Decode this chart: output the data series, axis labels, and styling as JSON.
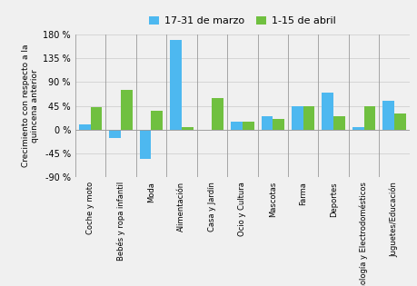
{
  "categories": [
    "Coche y moto",
    "Bebés y ropa infantil",
    "Moda",
    "Alimentación",
    "Casa y Jardín",
    "Ocio y Cultura",
    "Mascotas",
    "Farma",
    "Deportes",
    "Tecnología y Electrodomésticos",
    "Juguetes/Educación"
  ],
  "series": [
    {
      "label": "17-31 de marzo",
      "color": "#4db8f0",
      "values": [
        10,
        -15,
        -55,
        170,
        0,
        15,
        25,
        45,
        70,
        5,
        55
      ]
    },
    {
      "label": "1-15 de abril",
      "color": "#70c040",
      "values": [
        42,
        75,
        35,
        5,
        60,
        15,
        20,
        45,
        25,
        45,
        30
      ]
    }
  ],
  "ylabel": "Crecimiento con respecto a la\nquincena anterior",
  "ylim": [
    -90,
    180
  ],
  "yticks": [
    -90,
    -45,
    0,
    45,
    90,
    135,
    180
  ],
  "bar_width": 0.38,
  "background_color": "#f0f0f0",
  "plot_bg_color": "#f0f0f0",
  "grid_color": "#d0d0d0",
  "vline_color": "#999999",
  "legend_fontsize": 8,
  "ylabel_fontsize": 6.5,
  "xtick_fontsize": 6,
  "ytick_fontsize": 7
}
